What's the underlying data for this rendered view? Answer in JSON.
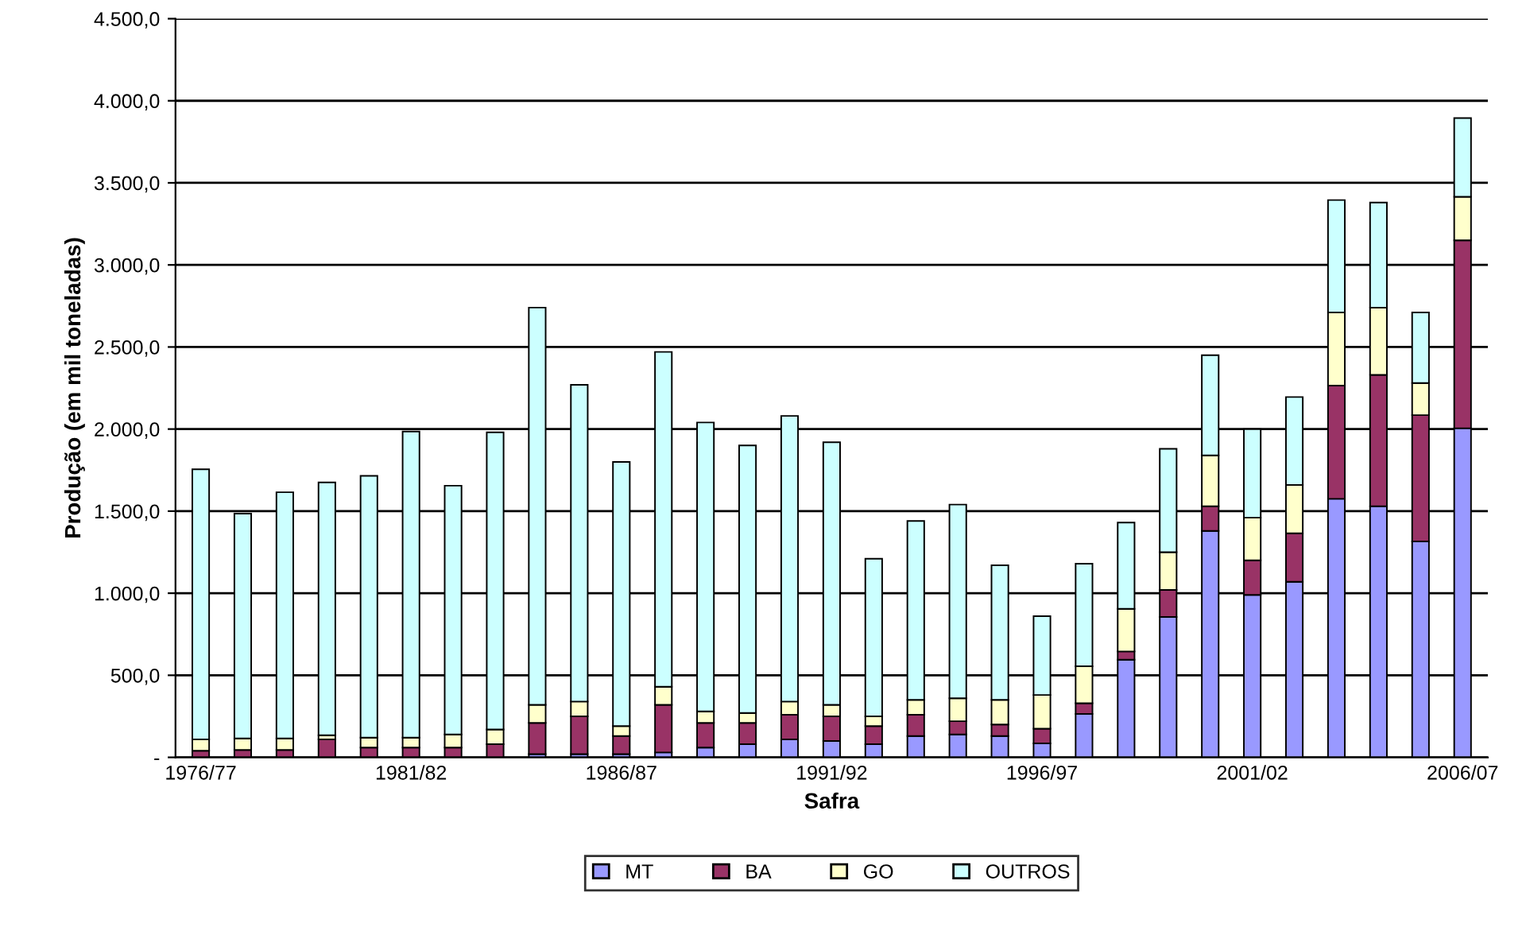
{
  "chart_data": {
    "type": "bar",
    "stacked": true,
    "xlabel": "Safra",
    "ylabel": "Produção (em mil toneladas)",
    "categories": [
      "1976/77",
      null,
      null,
      null,
      null,
      "1981/82",
      null,
      null,
      null,
      null,
      "1986/87",
      null,
      null,
      null,
      null,
      "1991/92",
      null,
      null,
      null,
      null,
      "1996/97",
      null,
      null,
      null,
      null,
      "2001/02",
      null,
      null,
      null,
      null,
      "2006/07"
    ],
    "series": [
      {
        "name": "MT",
        "color": "#9999ff",
        "values": [
          0,
          0,
          0,
          0,
          0,
          0,
          0,
          0,
          20,
          20,
          20,
          30,
          60,
          80,
          110,
          100,
          80,
          130,
          140,
          130,
          85,
          265,
          595,
          855,
          1380,
          990,
          1070,
          1575,
          1530,
          1315,
          2005
        ]
      },
      {
        "name": "BA",
        "color": "#993366",
        "values": [
          40,
          45,
          45,
          110,
          60,
          60,
          60,
          80,
          190,
          230,
          110,
          290,
          150,
          130,
          150,
          150,
          110,
          130,
          80,
          70,
          90,
          65,
          50,
          165,
          150,
          210,
          295,
          690,
          800,
          770,
          1145
        ]
      },
      {
        "name": "GO",
        "color": "#ffffcc",
        "values": [
          70,
          70,
          70,
          25,
          60,
          60,
          80,
          90,
          110,
          90,
          60,
          110,
          70,
          60,
          80,
          70,
          60,
          90,
          140,
          150,
          205,
          225,
          260,
          230,
          310,
          260,
          295,
          445,
          410,
          195,
          265
        ]
      },
      {
        "name": "OUTROS",
        "color": "#ccffff",
        "values": [
          1645,
          1370,
          1500,
          1540,
          1595,
          1865,
          1515,
          1810,
          2420,
          1930,
          1610,
          2040,
          1760,
          1630,
          1740,
          1600,
          960,
          1090,
          1180,
          820,
          480,
          625,
          525,
          630,
          610,
          540,
          535,
          685,
          640,
          430,
          480
        ]
      }
    ],
    "ylim": [
      0,
      4500
    ],
    "yticks": [
      {
        "value": 0,
        "label": "-"
      },
      {
        "value": 500,
        "label": "500,0"
      },
      {
        "value": 1000,
        "label": "1.000,0"
      },
      {
        "value": 1500,
        "label": "1.500,0"
      },
      {
        "value": 2000,
        "label": "2.000,0"
      },
      {
        "value": 2500,
        "label": "2.500,0"
      },
      {
        "value": 3000,
        "label": "3.000,0"
      },
      {
        "value": 3500,
        "label": "3.500,0"
      },
      {
        "value": 4000,
        "label": "4.000,0"
      },
      {
        "value": 4500,
        "label": "4.500,0"
      }
    ],
    "grid": "y",
    "legend": "bottom"
  }
}
